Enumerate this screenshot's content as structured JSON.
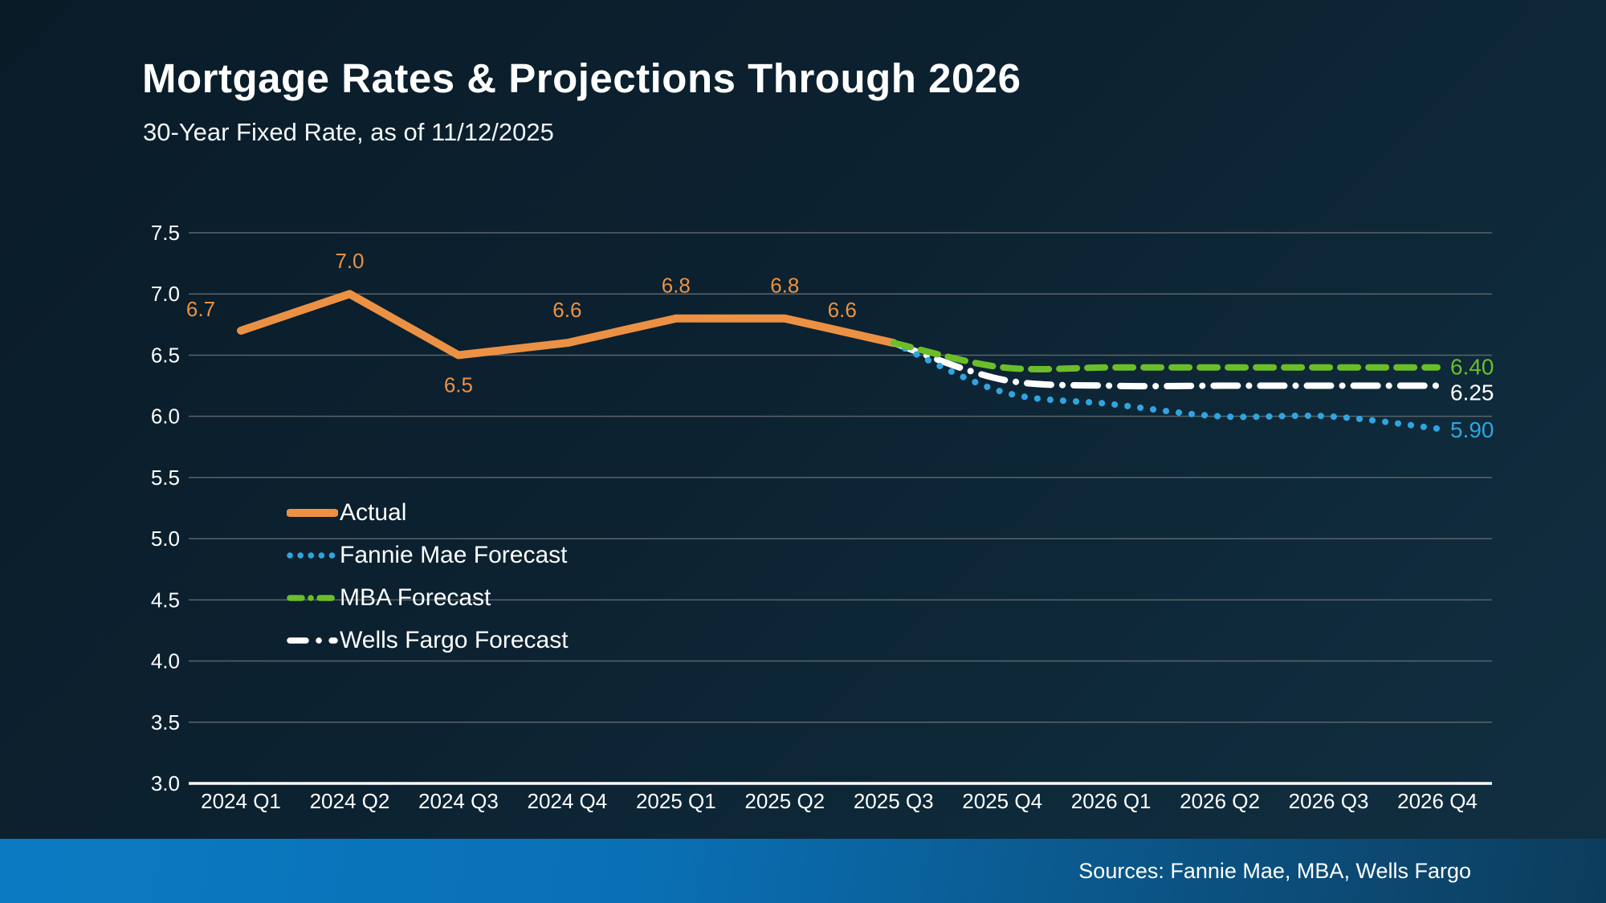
{
  "header": {
    "title": "Mortgage Rates & Projections Through 2026",
    "subtitle": "30-Year Fixed Rate, as of 11/12/2025"
  },
  "footer": {
    "sources": "Sources: Fannie Mae, MBA, Wells Fargo"
  },
  "colors": {
    "background": "#0C2231",
    "accent_orange": "#EC9143",
    "accent_blue": "#2FA5E0",
    "accent_green": "#6CBE29",
    "grid": "#5A646C",
    "axis": "#FFFFFF",
    "footer_left": "#0B7AC2",
    "footer_right": "#0C3C5C"
  },
  "chart_data": {
    "type": "line",
    "title": "Mortgage Rates & Projections Through 2026",
    "subtitle": "30-Year Fixed Rate, as of 11/12/2025",
    "categories": [
      "2024 Q1",
      "2024 Q2",
      "2024 Q3",
      "2024 Q4",
      "2025 Q1",
      "2025 Q2",
      "2025 Q3",
      "2025 Q4",
      "2026 Q1",
      "2026 Q2",
      "2026 Q3",
      "2026 Q4"
    ],
    "y_ticks": [
      "7.5",
      "7.0",
      "6.5",
      "6.0",
      "5.5",
      "5.0",
      "4.5",
      "4.0",
      "3.5",
      "3.0"
    ],
    "ylim": [
      3.0,
      7.5
    ],
    "grid": true,
    "legend_position": "inside-left",
    "series": [
      {
        "name": "Actual",
        "color": "#EC9143",
        "style": "solid",
        "values": [
          6.7,
          7.0,
          6.5,
          6.6,
          6.8,
          6.8,
          6.6,
          null,
          null,
          null,
          null,
          null
        ],
        "point_labels": [
          "6.7",
          "7.0",
          "6.5",
          "6.6",
          "6.8",
          "6.8",
          "6.6"
        ]
      },
      {
        "name": "Fannie Mae Forecast",
        "color": "#2FA5E0",
        "style": "dotted",
        "values": [
          null,
          null,
          null,
          null,
          null,
          null,
          6.6,
          6.2,
          6.1,
          6.0,
          6.0,
          5.9
        ],
        "end_label": "5.90"
      },
      {
        "name": "MBA Forecast",
        "color": "#6CBE29",
        "style": "dashed",
        "values": [
          null,
          null,
          null,
          null,
          null,
          null,
          6.6,
          6.4,
          6.4,
          6.4,
          6.4,
          6.4
        ],
        "end_label": "6.40"
      },
      {
        "name": "Wells Fargo Forecast",
        "color": "#FFFFFF",
        "style": "dashdot",
        "values": [
          null,
          null,
          null,
          null,
          null,
          null,
          6.6,
          6.3,
          6.25,
          6.25,
          6.25,
          6.25
        ],
        "end_label": "6.25"
      }
    ]
  }
}
